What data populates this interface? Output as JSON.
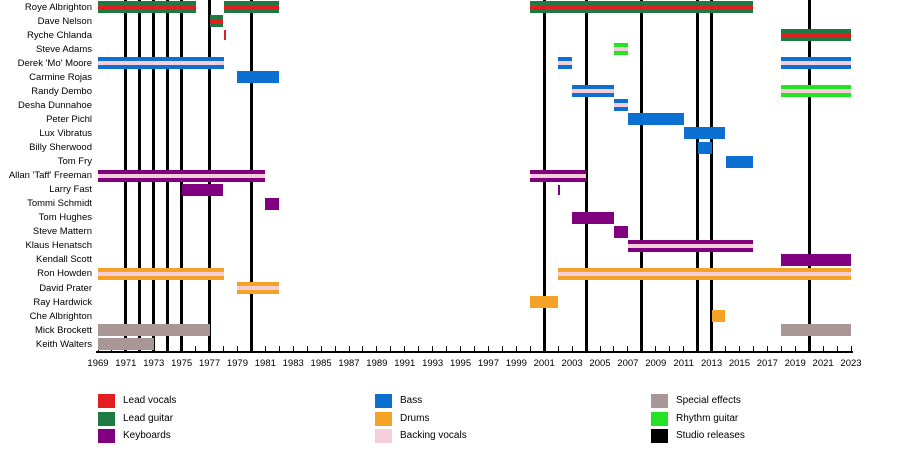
{
  "chart_data": {
    "type": "timeline",
    "description": "Band membership Gantt-style timeline with vertical studio-release markers",
    "x_range": [
      1969,
      2023
    ],
    "year_labels": [
      "1969",
      "1971",
      "1973",
      "1975",
      "1977",
      "1979",
      "1981",
      "1983",
      "1985",
      "1987",
      "1989",
      "1991",
      "1993",
      "1995",
      "1997",
      "1999",
      "2001",
      "2003",
      "2005",
      "2007",
      "2009",
      "2011",
      "2013",
      "2015",
      "2017",
      "2019",
      "2021",
      "2023"
    ],
    "colors": {
      "lead_vocals": "#e41e20",
      "lead_guitar": "#1d7a43",
      "keyboards": "#800080",
      "bass": "#0c6fd2",
      "drums": "#f6a227",
      "backing_vocals": "#f6ced9",
      "special_effects": "#a99798",
      "rhythm_guitar": "#24e224",
      "studio_releases": "#000000"
    },
    "studio_releases": [
      1971,
      1972,
      1973,
      1974,
      1975,
      1977,
      1980,
      2001,
      2004,
      2008,
      2012,
      2013,
      2020
    ],
    "members": [
      {
        "name": "Roye Albrighton",
        "bars": [
          {
            "start": 1969,
            "end": 1976,
            "role": "lead_guitar",
            "stripe": "lead_vocals"
          },
          {
            "start": 1978,
            "end": 1982,
            "role": "lead_guitar",
            "stripe": "lead_vocals"
          },
          {
            "start": 2000,
            "end": 2016,
            "role": "lead_guitar",
            "stripe": "lead_vocals"
          }
        ]
      },
      {
        "name": "Dave Nelson",
        "bars": [
          {
            "start": 1977,
            "end": 1978,
            "role": "lead_guitar",
            "stripe": "lead_vocals"
          }
        ]
      },
      {
        "name": "Ryche Chlanda",
        "bars": [
          {
            "start": 1978,
            "end": 1978,
            "role": "lead_vocals"
          },
          {
            "start": 2018,
            "end": 2023,
            "role": "lead_guitar",
            "stripe": "lead_vocals"
          }
        ]
      },
      {
        "name": "Steve Adams",
        "bars": [
          {
            "start": 2006,
            "end": 2007,
            "role": "rhythm_guitar",
            "stripe": "backing_vocals"
          }
        ]
      },
      {
        "name": "Derek 'Mo' Moore",
        "bars": [
          {
            "start": 1969,
            "end": 1978,
            "role": "bass",
            "stripe": "backing_vocals"
          },
          {
            "start": 2002,
            "end": 2003,
            "role": "bass",
            "stripe": "backing_vocals"
          },
          {
            "start": 2018,
            "end": 2023,
            "role": "bass",
            "stripe": "backing_vocals"
          }
        ]
      },
      {
        "name": "Carmine Rojas",
        "bars": [
          {
            "start": 1979,
            "end": 1982,
            "role": "bass"
          }
        ]
      },
      {
        "name": "Randy Dembo",
        "bars": [
          {
            "start": 2003,
            "end": 2006,
            "role": "bass",
            "stripe": "backing_vocals"
          },
          {
            "start": 2018,
            "end": 2023,
            "role": "rhythm_guitar",
            "stripe": "backing_vocals"
          }
        ]
      },
      {
        "name": "Desha Dunnahoe",
        "bars": [
          {
            "start": 2006,
            "end": 2007,
            "role": "bass",
            "stripe": "backing_vocals"
          }
        ]
      },
      {
        "name": "Peter Pichl",
        "bars": [
          {
            "start": 2007,
            "end": 2011,
            "role": "bass"
          }
        ]
      },
      {
        "name": "Lux Vibratus",
        "bars": [
          {
            "start": 2011,
            "end": 2014,
            "role": "bass"
          }
        ]
      },
      {
        "name": "Billy Sherwood",
        "bars": [
          {
            "start": 2012,
            "end": 2013,
            "role": "bass"
          }
        ]
      },
      {
        "name": "Tom Fry",
        "bars": [
          {
            "start": 2014,
            "end": 2016,
            "role": "bass"
          }
        ]
      },
      {
        "name": "Allan 'Taff' Freeman",
        "bars": [
          {
            "start": 1969,
            "end": 1981,
            "role": "keyboards",
            "stripe": "backing_vocals"
          },
          {
            "start": 2000,
            "end": 2004,
            "role": "keyboards",
            "stripe": "backing_vocals"
          }
        ]
      },
      {
        "name": "Larry Fast",
        "bars": [
          {
            "start": 1975,
            "end": 1978,
            "role": "keyboards"
          },
          {
            "start": 2002,
            "end": 2002,
            "role": "keyboards"
          }
        ]
      },
      {
        "name": "Tommi Schmidt",
        "bars": [
          {
            "start": 1981,
            "end": 1982,
            "role": "keyboards"
          }
        ]
      },
      {
        "name": "Tom Hughes",
        "bars": [
          {
            "start": 2003,
            "end": 2006,
            "role": "keyboards"
          }
        ]
      },
      {
        "name": "Steve Mattern",
        "bars": [
          {
            "start": 2006,
            "end": 2007,
            "role": "keyboards"
          }
        ]
      },
      {
        "name": "Klaus Henatsch",
        "bars": [
          {
            "start": 2007,
            "end": 2016,
            "role": "keyboards",
            "stripe": "backing_vocals"
          }
        ]
      },
      {
        "name": "Kendall Scott",
        "bars": [
          {
            "start": 2018,
            "end": 2023,
            "role": "keyboards"
          }
        ]
      },
      {
        "name": "Ron Howden",
        "bars": [
          {
            "start": 1969,
            "end": 1978,
            "role": "drums",
            "stripe": "backing_vocals"
          },
          {
            "start": 2002,
            "end": 2023,
            "role": "drums",
            "stripe": "backing_vocals"
          }
        ]
      },
      {
        "name": "David Prater",
        "bars": [
          {
            "start": 1979,
            "end": 1982,
            "role": "drums",
            "stripe": "backing_vocals"
          }
        ]
      },
      {
        "name": "Ray Hardwick",
        "bars": [
          {
            "start": 2000,
            "end": 2002,
            "role": "drums"
          }
        ]
      },
      {
        "name": "Che Albrighton",
        "bars": [
          {
            "start": 2013,
            "end": 2014,
            "role": "drums"
          }
        ]
      },
      {
        "name": "Mick Brockett",
        "bars": [
          {
            "start": 1969,
            "end": 1977,
            "role": "special_effects"
          },
          {
            "start": 2018,
            "end": 2023,
            "role": "special_effects"
          }
        ]
      },
      {
        "name": "Keith Walters",
        "bars": [
          {
            "start": 1969,
            "end": 1973,
            "role": "special_effects"
          }
        ]
      }
    ]
  },
  "legend": {
    "items": [
      {
        "label": "Lead vocals",
        "role": "lead_vocals"
      },
      {
        "label": "Lead guitar",
        "role": "lead_guitar"
      },
      {
        "label": "Keyboards",
        "role": "keyboards"
      },
      {
        "label": "Bass",
        "role": "bass"
      },
      {
        "label": "Drums",
        "role": "drums"
      },
      {
        "label": "Backing vocals",
        "role": "backing_vocals"
      },
      {
        "label": "Special effects",
        "role": "special_effects"
      },
      {
        "label": "Rhythm guitar",
        "role": "rhythm_guitar"
      },
      {
        "label": "Studio releases",
        "role": "studio_releases"
      }
    ]
  }
}
